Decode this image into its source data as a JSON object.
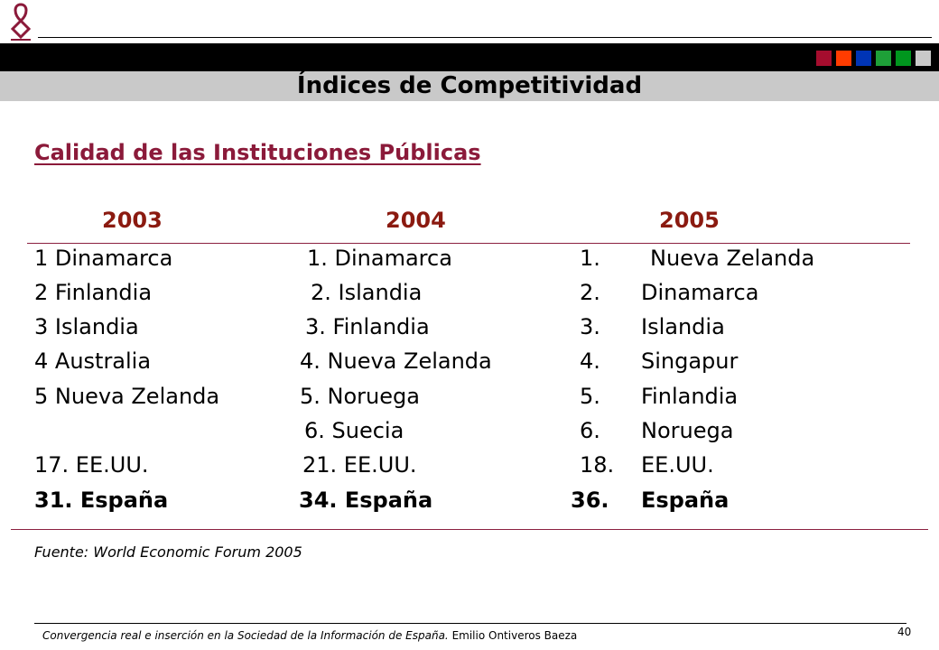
{
  "header": {
    "title": "Índices de Competitividad",
    "squares": [
      "#a50d2e",
      "#ff3c00",
      "#0034b5",
      "#1ea038",
      "#00961e",
      "#c9c9c9"
    ]
  },
  "subtitle": "Calidad de las Instituciones Públicas",
  "years": [
    "2003",
    "2004",
    "2005"
  ],
  "col2003": [
    "1 Dinamarca",
    "2 Finlandia",
    "3 Islandia",
    "4 Australia",
    "5 Nueva Zelanda",
    "",
    "17. EE.UU.",
    "31. España"
  ],
  "col2004": [
    "1. Dinamarca",
    "2. Islandia",
    "3. Finlandia",
    "4. Nueva Zelanda",
    "5. Noruega",
    "6. Suecia",
    "21. EE.UU.",
    "34. España"
  ],
  "col2005": [
    {
      "rank": "1.",
      "name": "Nueva Zelanda"
    },
    {
      "rank": "2.",
      "name": "Dinamarca"
    },
    {
      "rank": "3.",
      "name": "Islandia"
    },
    {
      "rank": "4.",
      "name": "Singapur"
    },
    {
      "rank": "5.",
      "name": "Finlandia"
    },
    {
      "rank": "6.",
      "name": "Noruega"
    },
    {
      "rank": "18.",
      "name": "EE.UU."
    },
    {
      "rank": "36.",
      "name": "España"
    }
  ],
  "source": "Fuente: World Economic Forum 2005",
  "footer": {
    "italic_text": "Convergencia real e inserción en la Sociedad de la Información de España.",
    "author": "Emilio Ontiveros Baeza",
    "page": "40"
  }
}
